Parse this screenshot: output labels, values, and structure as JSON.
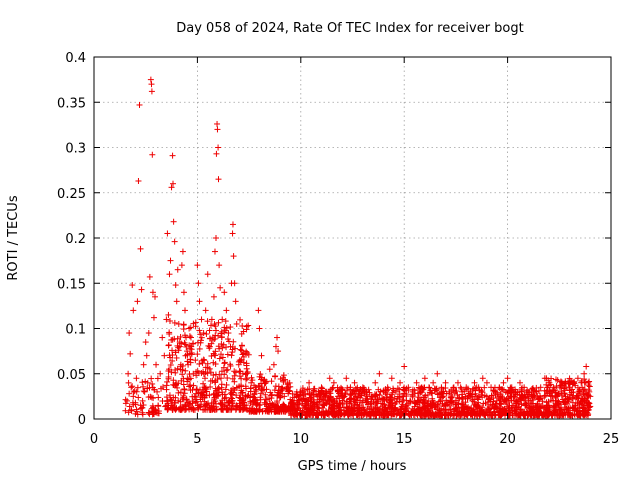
{
  "chart_data": {
    "type": "scatter",
    "title": "Day 058 of 2024, Rate Of TEC Index for receiver bogt",
    "xlabel": "GPS time / hours",
    "ylabel": "ROTI / TECUs",
    "xlim": [
      0,
      25
    ],
    "ylim": [
      0,
      0.4
    ],
    "x_ticks": [
      0,
      5,
      10,
      15,
      20,
      25
    ],
    "x_tick_labels": [
      "0",
      "5",
      "10",
      "15",
      "20",
      "25"
    ],
    "y_ticks": [
      0,
      0.05,
      0.1,
      0.15,
      0.2,
      0.25,
      0.3,
      0.35,
      0.4
    ],
    "y_tick_labels": [
      "0",
      "0.05",
      "0.1",
      "0.15",
      "0.2",
      "0.25",
      "0.3",
      "0.35",
      "0.4"
    ],
    "grid": true,
    "marker": "plus",
    "color": "#ee0000",
    "series": [
      {
        "name": "ROTI",
        "points": [
          [
            1.6,
            0.02
          ],
          [
            1.65,
            0.05
          ],
          [
            1.7,
            0.095
          ],
          [
            1.75,
            0.072
          ],
          [
            1.8,
            0.035
          ],
          [
            1.85,
            0.148
          ],
          [
            1.9,
            0.12
          ],
          [
            1.7,
            0.028
          ],
          [
            1.8,
            0.01
          ],
          [
            1.9,
            0.025
          ],
          [
            2.0,
            0.018
          ],
          [
            2.05,
            0.045
          ],
          [
            2.1,
            0.13
          ],
          [
            2.15,
            0.263
          ],
          [
            2.2,
            0.347
          ],
          [
            2.25,
            0.188
          ],
          [
            2.3,
            0.143
          ],
          [
            2.35,
            0.02
          ],
          [
            2.4,
            0.06
          ],
          [
            2.45,
            0.03
          ],
          [
            2.5,
            0.085
          ],
          [
            2.55,
            0.07
          ],
          [
            2.6,
            0.04
          ],
          [
            2.65,
            0.095
          ],
          [
            2.7,
            0.157
          ],
          [
            2.75,
            0.375
          ],
          [
            2.78,
            0.37
          ],
          [
            2.8,
            0.362
          ],
          [
            2.82,
            0.292
          ],
          [
            2.85,
            0.14
          ],
          [
            2.9,
            0.112
          ],
          [
            2.95,
            0.135
          ],
          [
            3.0,
            0.06
          ],
          [
            3.05,
            0.03
          ],
          [
            3.1,
            0.015
          ],
          [
            3.2,
            0.05
          ],
          [
            3.3,
            0.09
          ],
          [
            3.4,
            0.07
          ],
          [
            3.5,
            0.11
          ],
          [
            3.55,
            0.205
          ],
          [
            3.6,
            0.115
          ],
          [
            3.65,
            0.16
          ],
          [
            3.7,
            0.175
          ],
          [
            3.75,
            0.256
          ],
          [
            3.8,
            0.291
          ],
          [
            3.82,
            0.26
          ],
          [
            3.85,
            0.218
          ],
          [
            3.9,
            0.196
          ],
          [
            3.95,
            0.148
          ],
          [
            4.0,
            0.13
          ],
          [
            4.05,
            0.165
          ],
          [
            4.1,
            0.105
          ],
          [
            4.15,
            0.08
          ],
          [
            4.2,
            0.06
          ],
          [
            4.25,
            0.17
          ],
          [
            4.3,
            0.185
          ],
          [
            4.35,
            0.14
          ],
          [
            4.4,
            0.12
          ],
          [
            4.45,
            0.09
          ],
          [
            4.5,
            0.075
          ],
          [
            4.55,
            0.06
          ],
          [
            4.6,
            0.1
          ],
          [
            4.7,
            0.08
          ],
          [
            4.8,
            0.05
          ],
          [
            4.9,
            0.065
          ],
          [
            5.0,
            0.17
          ],
          [
            5.05,
            0.15
          ],
          [
            5.1,
            0.13
          ],
          [
            5.2,
            0.11
          ],
          [
            5.3,
            0.095
          ],
          [
            5.4,
            0.12
          ],
          [
            5.5,
            0.16
          ],
          [
            5.6,
            0.08
          ],
          [
            5.7,
            0.11
          ],
          [
            5.8,
            0.135
          ],
          [
            5.85,
            0.185
          ],
          [
            5.9,
            0.2
          ],
          [
            5.92,
            0.293
          ],
          [
            5.95,
            0.326
          ],
          [
            5.97,
            0.32
          ],
          [
            6.0,
            0.3
          ],
          [
            6.02,
            0.265
          ],
          [
            6.05,
            0.17
          ],
          [
            6.1,
            0.145
          ],
          [
            6.2,
            0.11
          ],
          [
            6.3,
            0.14
          ],
          [
            6.4,
            0.12
          ],
          [
            6.5,
            0.095
          ],
          [
            6.6,
            0.08
          ],
          [
            6.65,
            0.15
          ],
          [
            6.7,
            0.205
          ],
          [
            6.72,
            0.215
          ],
          [
            6.75,
            0.18
          ],
          [
            6.8,
            0.15
          ],
          [
            6.85,
            0.13
          ],
          [
            6.9,
            0.105
          ],
          [
            7.0,
            0.06
          ],
          [
            7.2,
            0.05
          ],
          [
            7.4,
            0.045
          ],
          [
            7.6,
            0.04
          ],
          [
            7.8,
            0.035
          ],
          [
            7.95,
            0.12
          ],
          [
            8.0,
            0.1
          ],
          [
            8.1,
            0.07
          ],
          [
            8.3,
            0.04
          ],
          [
            8.5,
            0.055
          ],
          [
            8.7,
            0.06
          ],
          [
            8.8,
            0.08
          ],
          [
            8.85,
            0.09
          ],
          [
            8.9,
            0.075
          ],
          [
            9.0,
            0.03
          ],
          [
            9.2,
            0.025
          ],
          [
            9.4,
            0.035
          ],
          [
            9.6,
            0.02
          ],
          [
            9.8,
            0.025
          ],
          [
            10.0,
            0.03
          ],
          [
            10.2,
            0.02
          ],
          [
            10.4,
            0.04
          ],
          [
            10.6,
            0.03
          ],
          [
            10.8,
            0.025
          ],
          [
            11.0,
            0.035
          ],
          [
            11.2,
            0.03
          ],
          [
            11.4,
            0.045
          ],
          [
            11.6,
            0.04
          ],
          [
            11.8,
            0.03
          ],
          [
            12.0,
            0.025
          ],
          [
            12.2,
            0.045
          ],
          [
            12.4,
            0.035
          ],
          [
            12.6,
            0.04
          ],
          [
            12.8,
            0.03
          ],
          [
            13.0,
            0.035
          ],
          [
            13.2,
            0.03
          ],
          [
            13.4,
            0.025
          ],
          [
            13.6,
            0.04
          ],
          [
            13.8,
            0.05
          ],
          [
            14.0,
            0.03
          ],
          [
            14.2,
            0.035
          ],
          [
            14.4,
            0.045
          ],
          [
            14.6,
            0.03
          ],
          [
            14.8,
            0.04
          ],
          [
            15.0,
            0.058
          ],
          [
            15.2,
            0.035
          ],
          [
            15.4,
            0.03
          ],
          [
            15.6,
            0.04
          ],
          [
            15.8,
            0.03
          ],
          [
            16.0,
            0.045
          ],
          [
            16.2,
            0.035
          ],
          [
            16.4,
            0.04
          ],
          [
            16.6,
            0.05
          ],
          [
            16.8,
            0.035
          ],
          [
            17.0,
            0.04
          ],
          [
            17.2,
            0.03
          ],
          [
            17.4,
            0.035
          ],
          [
            17.6,
            0.04
          ],
          [
            17.8,
            0.03
          ],
          [
            18.0,
            0.035
          ],
          [
            18.2,
            0.03
          ],
          [
            18.4,
            0.04
          ],
          [
            18.6,
            0.035
          ],
          [
            18.8,
            0.045
          ],
          [
            19.0,
            0.04
          ],
          [
            19.2,
            0.035
          ],
          [
            19.4,
            0.03
          ],
          [
            19.6,
            0.035
          ],
          [
            19.8,
            0.04
          ],
          [
            20.0,
            0.045
          ],
          [
            20.2,
            0.035
          ],
          [
            20.4,
            0.03
          ],
          [
            20.6,
            0.04
          ],
          [
            20.8,
            0.035
          ],
          [
            21.0,
            0.03
          ],
          [
            21.2,
            0.025
          ],
          [
            21.4,
            0.03
          ],
          [
            21.6,
            0.035
          ],
          [
            21.8,
            0.045
          ],
          [
            22.0,
            0.005
          ],
          [
            22.2,
            0.02
          ],
          [
            22.4,
            0.025
          ],
          [
            22.6,
            0.03
          ],
          [
            22.8,
            0.025
          ],
          [
            23.0,
            0.035
          ],
          [
            23.2,
            0.04
          ],
          [
            23.4,
            0.045
          ],
          [
            23.5,
            0.03
          ],
          [
            23.6,
            0.035
          ],
          [
            23.7,
            0.05
          ],
          [
            23.8,
            0.058
          ],
          [
            23.9,
            0.04
          ],
          [
            23.95,
            0.03
          ],
          [
            24.0,
            0.025
          ]
        ]
      }
    ],
    "dense_band": {
      "segments": [
        {
          "x": [
            1.5,
            3.5
          ],
          "y_low": 0.005,
          "y_high": 0.045,
          "count": 70
        },
        {
          "x": [
            3.5,
            7.5
          ],
          "y_low": 0.01,
          "y_high": 0.11,
          "count": 500
        },
        {
          "x": [
            7.5,
            9.5
          ],
          "y_low": 0.008,
          "y_high": 0.05,
          "count": 200
        },
        {
          "x": [
            9.5,
            21.8
          ],
          "y_low": 0.004,
          "y_high": 0.035,
          "count": 1400
        },
        {
          "x": [
            21.8,
            24.0
          ],
          "y_low": 0.004,
          "y_high": 0.045,
          "count": 300
        }
      ]
    }
  }
}
